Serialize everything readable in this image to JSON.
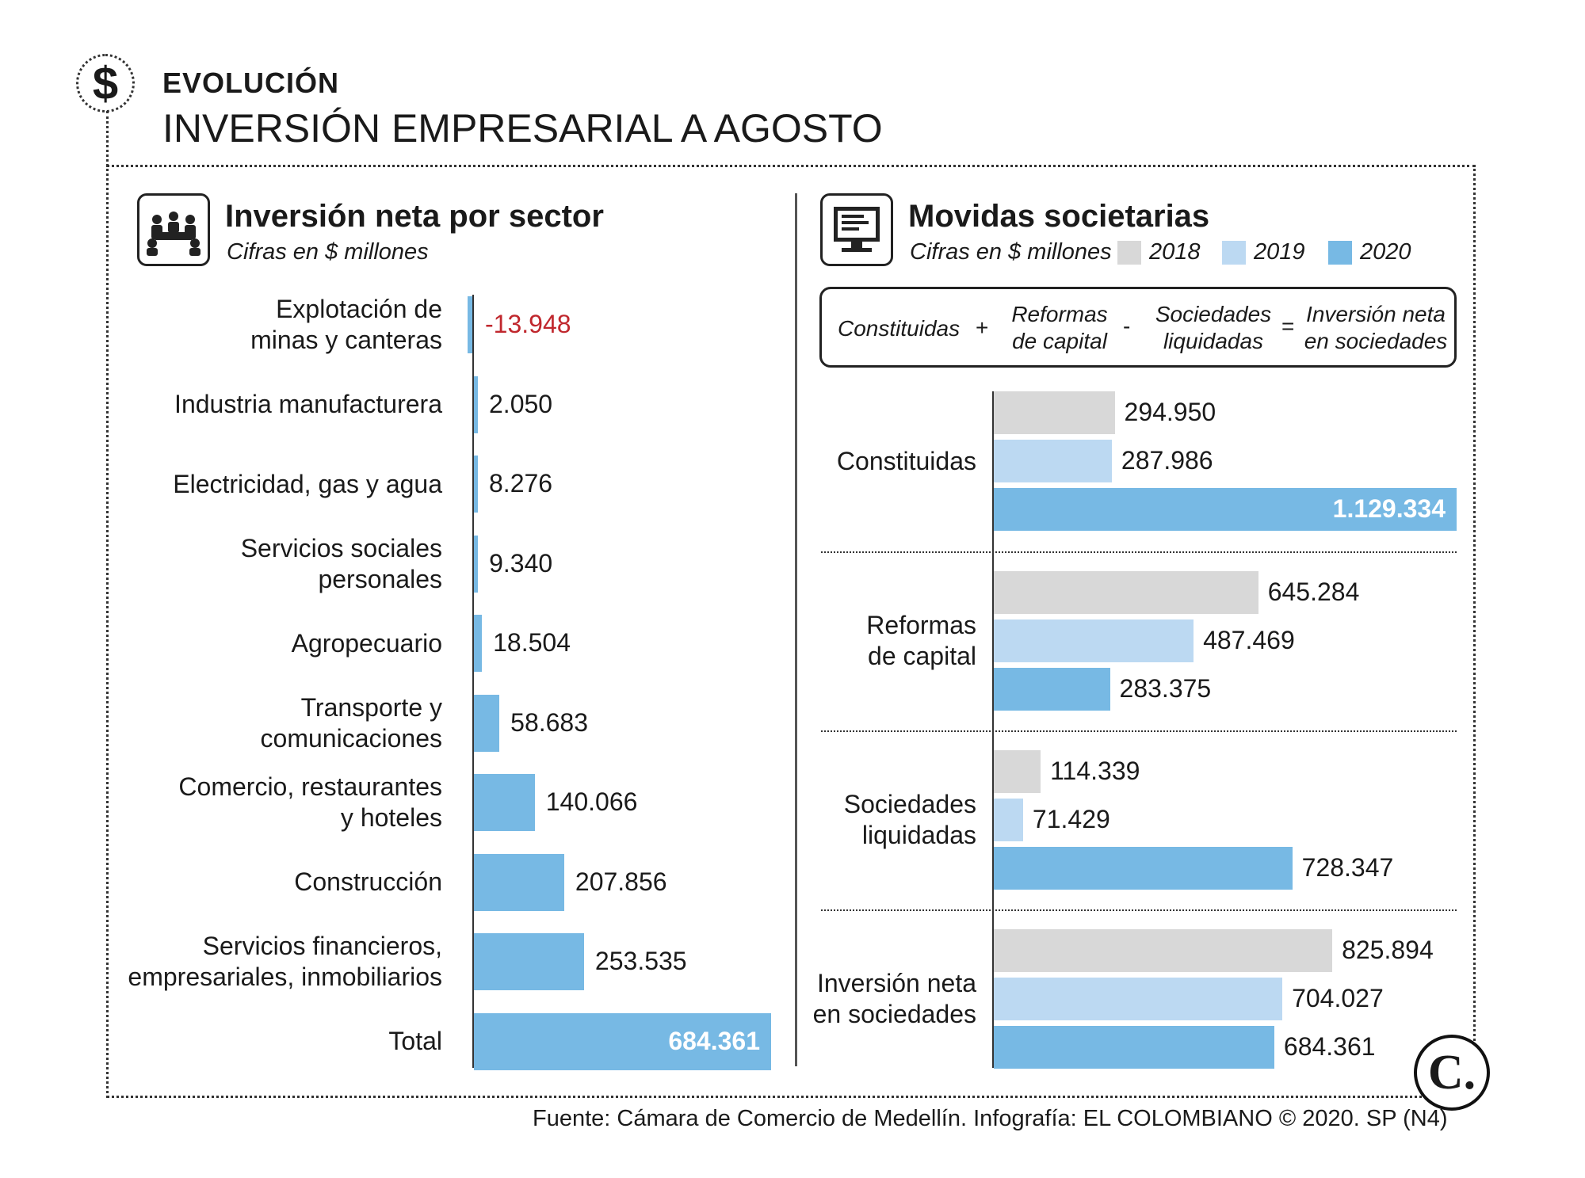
{
  "header": {
    "kicker": "EVOLUCIÓN",
    "title": "INVERSIÓN EMPRESARIAL A  AGOSTO",
    "icon": "dollar-icon",
    "icon_glyph": "$"
  },
  "left_panel": {
    "title": "Inversión neta por sector",
    "subtitle": "Cifras en $ millones",
    "icon": "meeting-people-icon"
  },
  "right_panel": {
    "title": "Movidas societarias",
    "subtitle": "Cifras en $ millones",
    "icon": "computer-monitor-icon",
    "formula": {
      "term1": "Constituidas",
      "op1": "+",
      "term2_line1": "Reformas",
      "term2_line2": "de capital",
      "op2": "-",
      "term3_line1": "Sociedades",
      "term3_line2": "liquidadas",
      "op3": "=",
      "term4_line1": "Inversión neta",
      "term4_line2": "en sociedades"
    }
  },
  "colors": {
    "bar_blue": "#77b9e4",
    "bar_light_blue": "#bcd9f2",
    "bar_gray": "#d8d8d8",
    "negative_red": "#c0272d"
  },
  "chart_data": [
    {
      "type": "bar",
      "orientation": "horizontal",
      "title": "Inversión neta por sector",
      "subtitle": "Cifras en $ millones",
      "categories": [
        [
          "Explotación de",
          "minas y canteras"
        ],
        [
          "Industria manufacturera"
        ],
        [
          "Electricidad, gas y agua"
        ],
        [
          "Servicios sociales",
          "personales"
        ],
        [
          "Agropecuario"
        ],
        [
          "Transporte y",
          "comunicaciones"
        ],
        [
          "Comercio, restaurantes",
          "y hoteles"
        ],
        [
          "Construcción"
        ],
        [
          "Servicios financieros,",
          "empresariales, inmobiliarios"
        ],
        [
          "Total"
        ]
      ],
      "values": [
        -13948,
        2050,
        8276,
        9340,
        18504,
        58683,
        140066,
        207856,
        253535,
        684361
      ],
      "value_labels": [
        "-13.948",
        "2.050",
        "8.276",
        "9.340",
        "18.504",
        "58.683",
        "140.066",
        "207.856",
        "253.535",
        "684.361"
      ],
      "xlim": [
        -20000,
        684361
      ]
    },
    {
      "type": "bar",
      "orientation": "horizontal",
      "title": "Movidas societarias",
      "subtitle": "Cifras en $ millones",
      "legend": [
        "2018",
        "2019",
        "2020"
      ],
      "groups": [
        {
          "label": [
            "Constituidas"
          ],
          "values": [
            294950,
            287986,
            1129334
          ],
          "value_labels": [
            "294.950",
            "287.986",
            "1.129.334"
          ]
        },
        {
          "label": [
            "Reformas",
            "de capital"
          ],
          "values": [
            645284,
            487469,
            283375
          ],
          "value_labels": [
            "645.284",
            "487.469",
            "283.375"
          ]
        },
        {
          "label": [
            "Sociedades",
            "liquidadas"
          ],
          "values": [
            114339,
            71429,
            728347
          ],
          "value_labels": [
            "114.339",
            "71.429",
            "728.347"
          ]
        },
        {
          "label": [
            "Inversión neta",
            "en sociedades"
          ],
          "values": [
            825894,
            704027,
            684361
          ],
          "value_labels": [
            "825.894",
            "704.027",
            "684.361"
          ]
        }
      ],
      "xlim": [
        0,
        1129334
      ]
    }
  ],
  "footer": {
    "source": "Fuente: Cámara de Comercio de Medellín. Infografía: EL COLOMBIANO © 2020. SP (N4)",
    "logo_text": "C."
  }
}
